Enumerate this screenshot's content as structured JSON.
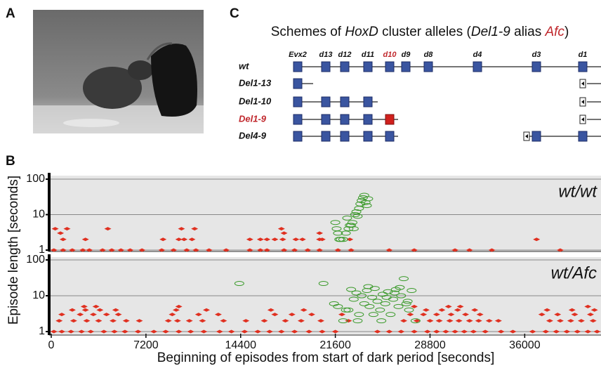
{
  "panel_labels": [
    "A",
    "B",
    "C"
  ],
  "scheme": {
    "title": [
      "Schemes of ",
      "HoxD",
      " cluster alleles (",
      "Del1-9",
      " alias ",
      "Afc",
      ")"
    ],
    "genes": [
      "Evx2",
      "d13",
      "d12",
      "d11",
      "d10",
      "d9",
      "d8",
      "d4",
      "d3",
      "d1"
    ],
    "alleles": [
      "wt",
      "Del1-13",
      "Del1-10",
      "Del1-9",
      "Del4-9"
    ]
  },
  "axis_labels": {
    "y": "Episode length [seconds]",
    "x": "Beginning of episodes from start of dark period [seconds]"
  },
  "chart_data": [
    {
      "type": "scatter",
      "annotation": "wt/wt",
      "log_y": true,
      "grid": true,
      "xlim": [
        0,
        41800
      ],
      "ylim": [
        1,
        100
      ],
      "yticks": [
        1,
        10,
        100
      ],
      "series": [
        {
          "color": "#e03020",
          "marker": "diamond",
          "x": [
            200,
            900,
            1600,
            2400,
            2900,
            3900,
            4600,
            5300,
            6000,
            6900,
            8400,
            9300,
            10300,
            11000,
            12000,
            13300,
            15100,
            15900,
            16400,
            17700,
            18500,
            19500,
            20400,
            21800,
            22800,
            25700,
            27600,
            30700,
            31800,
            33500,
            38700,
            300,
            1200,
            4300,
            9900,
            10900,
            17500,
            700,
            17700,
            20400,
            900,
            2600,
            8500,
            9700,
            10100,
            10700,
            15100,
            15900,
            16400,
            17000,
            17600,
            18600,
            19100,
            20400,
            20600,
            22700,
            36900
          ],
          "values": [
            1,
            1,
            1,
            1,
            1,
            1,
            1,
            1,
            1,
            1,
            1,
            1,
            1,
            1,
            1,
            1,
            1,
            1,
            1,
            1,
            1,
            1,
            1,
            1,
            1,
            1,
            1,
            1,
            1,
            1,
            1,
            4,
            4,
            4,
            4,
            4,
            4,
            3,
            3,
            3,
            2,
            2,
            2,
            2,
            2,
            2,
            2,
            2,
            2,
            2,
            2,
            2,
            2,
            2,
            2,
            2,
            2
          ]
        },
        {
          "color": "#3a9a2a",
          "marker": "ellipse",
          "x": [
            21600,
            21700,
            21800,
            21900,
            22000,
            22200,
            22500,
            22700,
            22800,
            22900,
            23000,
            23200,
            23400,
            23500,
            23600,
            23700,
            23800,
            23900,
            24000,
            23100,
            22600,
            23300,
            24100,
            22400
          ],
          "values": [
            6,
            4,
            3,
            2,
            2,
            2,
            8,
            5,
            5,
            6,
            4,
            12,
            15,
            20,
            25,
            30,
            35,
            22,
            18,
            10,
            4,
            9,
            28,
            3
          ]
        }
      ]
    },
    {
      "type": "scatter",
      "annotation": "wt/Afc",
      "log_y": true,
      "grid": true,
      "xlim": [
        0,
        41800
      ],
      "ylim": [
        1,
        100
      ],
      "yticks": [
        1,
        10,
        100
      ],
      "xticks": [
        0,
        7200,
        14400,
        21600,
        28800,
        36000
      ],
      "series": [
        {
          "color": "#e03020",
          "marker": "diamond",
          "x": [
            200,
            800,
            1500,
            2300,
            3000,
            4000,
            4800,
            5600,
            6600,
            7800,
            8700,
            9700,
            10600,
            11600,
            12800,
            13700,
            14700,
            15700,
            16600,
            17500,
            18500,
            19600,
            20600,
            21600,
            24800,
            25700,
            26600,
            27600,
            28600,
            29300,
            30000,
            30700,
            31400,
            32100,
            33000,
            34200,
            35100,
            36600,
            37600,
            38400,
            39200,
            40000,
            40800,
            41500,
            600,
            1700,
            2700,
            3600,
            4700,
            5700,
            6700,
            8900,
            9600,
            10500,
            11500,
            13100,
            14800,
            16200,
            17800,
            19000,
            20500,
            22600,
            26800,
            27800,
            28800,
            29500,
            30300,
            31000,
            31800,
            32500,
            33300,
            34000,
            37900,
            38700,
            39500,
            40300,
            41200,
            800,
            2200,
            3200,
            4200,
            5100,
            9200,
            11200,
            12700,
            17000,
            18300,
            19800,
            22100,
            27300,
            28300,
            29300,
            30400,
            31500,
            32600,
            37300,
            38500,
            39800,
            41000,
            1600,
            2600,
            3700,
            4900,
            9500,
            11800,
            16700,
            19200,
            28500,
            29700,
            30900,
            32200,
            37700,
            39600,
            41300,
            2500,
            3400,
            9700,
            27600,
            30200,
            31100,
            40800
          ],
          "values": [
            1,
            1,
            1,
            1,
            1,
            1,
            1,
            1,
            1,
            1,
            1,
            1,
            1,
            1,
            1,
            1,
            1,
            1,
            1,
            1,
            1,
            1,
            1,
            1,
            1,
            1,
            1,
            1,
            1,
            1,
            1,
            1,
            1,
            1,
            1,
            1,
            1,
            1,
            1,
            1,
            1,
            1,
            1,
            1,
            2,
            2,
            2,
            2,
            2,
            2,
            2,
            2,
            2,
            2,
            2,
            2,
            2,
            2,
            2,
            2,
            2,
            2,
            2,
            2,
            2,
            2,
            2,
            2,
            2,
            2,
            2,
            2,
            2,
            2,
            2,
            2,
            2,
            3,
            3,
            3,
            3,
            3,
            3,
            3,
            3,
            3,
            3,
            3,
            3,
            3,
            3,
            3,
            3,
            3,
            3,
            3,
            3,
            3,
            3,
            4,
            4,
            4,
            4,
            4,
            4,
            4,
            4,
            4,
            4,
            4,
            4,
            4,
            4,
            4,
            5,
            5,
            5,
            5,
            5,
            5,
            5
          ]
        },
        {
          "color": "#3a9a2a",
          "marker": "ellipse",
          "x": [
            14300,
            20700,
            21500,
            21800,
            22200,
            22600,
            22800,
            23000,
            23200,
            23400,
            23600,
            23800,
            24000,
            24200,
            24400,
            24600,
            24800,
            25000,
            25200,
            25400,
            25600,
            25800,
            26000,
            26200,
            26400,
            26600,
            26800,
            27000,
            27200,
            27400,
            23300,
            24100,
            25100,
            26100,
            27100,
            24500,
            25500,
            26500,
            22400,
            27700
          ],
          "values": [
            22,
            22,
            6,
            5,
            2,
            4,
            15,
            8,
            12,
            3,
            10,
            6,
            14,
            5,
            9,
            16,
            7,
            4,
            11,
            6,
            13,
            3,
            8,
            15,
            5,
            10,
            30,
            6,
            4,
            14,
            2,
            18,
            2,
            12,
            7,
            3,
            9,
            17,
            4,
            2
          ]
        }
      ]
    }
  ]
}
